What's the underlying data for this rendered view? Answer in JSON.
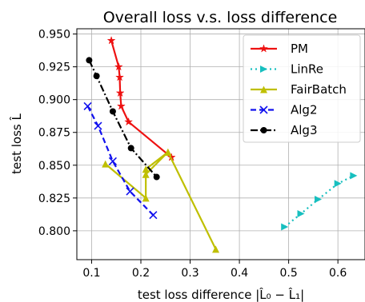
{
  "chart_data": {
    "type": "line",
    "title": "Overall loss v.s. loss difference",
    "xlabel": "test loss difference |L̂₀ − L̂₁|",
    "ylabel": "test loss L̂",
    "xlim": [
      0.07,
      0.655
    ],
    "ylim": [
      0.778,
      0.954
    ],
    "xticks": [
      0.1,
      0.2,
      0.3,
      0.4,
      0.5,
      0.6
    ],
    "xtick_labels": [
      "0.1",
      "0.2",
      "0.3",
      "0.4",
      "0.5",
      "0.6"
    ],
    "yticks": [
      0.8,
      0.825,
      0.85,
      0.875,
      0.9,
      0.925,
      0.95
    ],
    "ytick_labels": [
      "0.800",
      "0.825",
      "0.850",
      "0.875",
      "0.900",
      "0.925",
      "0.950"
    ],
    "grid": true,
    "legend_position": "top-right",
    "series": [
      {
        "name": "PM",
        "color": "#ee1111",
        "linestyle": "solid",
        "marker": "star",
        "x": [
          0.14,
          0.155,
          0.157,
          0.158,
          0.16,
          0.175,
          0.262
        ],
        "y": [
          0.945,
          0.925,
          0.917,
          0.905,
          0.895,
          0.883,
          0.856
        ]
      },
      {
        "name": "LinRe",
        "color": "#17bfbf",
        "linestyle": "dotted",
        "marker": "triangle-right",
        "x": [
          0.492,
          0.525,
          0.56,
          0.6,
          0.632
        ],
        "y": [
          0.803,
          0.813,
          0.824,
          0.836,
          0.842
        ]
      },
      {
        "name": "FairBatch",
        "color": "#bfbf00",
        "linestyle": "solid",
        "marker": "triangle-up",
        "x": [
          0.128,
          0.21,
          0.21,
          0.255,
          0.21,
          0.255,
          0.352
        ],
        "y": [
          0.851,
          0.825,
          0.843,
          0.86,
          0.847,
          0.86,
          0.786
        ]
      },
      {
        "name": "Alg2",
        "color": "#1111ee",
        "linestyle": "dashed",
        "marker": "x",
        "x": [
          0.092,
          0.113,
          0.143,
          0.178,
          0.225
        ],
        "y": [
          0.895,
          0.88,
          0.853,
          0.83,
          0.812
        ]
      },
      {
        "name": "Alg3",
        "color": "#000000",
        "linestyle": "dashdot",
        "marker": "circle",
        "x": [
          0.095,
          0.11,
          0.143,
          0.18,
          0.232
        ],
        "y": [
          0.93,
          0.918,
          0.891,
          0.863,
          0.841
        ]
      }
    ]
  }
}
